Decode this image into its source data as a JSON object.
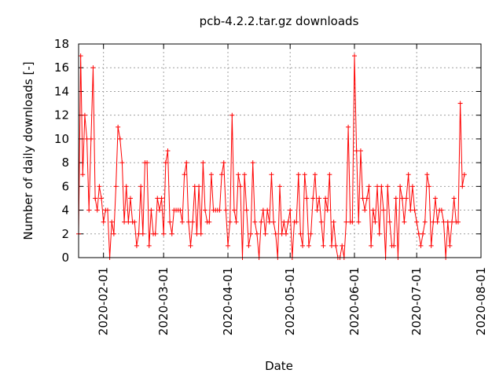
{
  "chart_data": {
    "type": "line",
    "title": "pcb-4.2.2.tar.gz downloads",
    "xlabel": "Date",
    "ylabel": "Number of daily downloads [-]",
    "x_range": [
      "2020-01-20",
      "2020-08-01"
    ],
    "ylim": [
      0,
      18
    ],
    "y_ticks": [
      0,
      2,
      4,
      6,
      8,
      10,
      12,
      14,
      16,
      18
    ],
    "x_ticks": [
      "2020-02-01",
      "2020-03-01",
      "2020-04-01",
      "2020-05-01",
      "2020-06-01",
      "2020-07-01",
      "2020-08-01"
    ],
    "grid": true,
    "line_color": "#ff0000",
    "series": [
      {
        "x_start": "2020-01-20",
        "x_step_days": 1,
        "values": [
          2,
          17,
          7,
          12,
          10,
          4,
          10,
          16,
          5,
          4,
          6,
          5,
          3,
          4,
          4,
          0,
          3,
          2,
          6,
          11,
          10,
          8,
          3,
          6,
          3,
          5,
          3,
          3,
          1,
          2,
          6,
          2,
          8,
          8,
          1,
          4,
          2,
          2,
          5,
          4,
          5,
          2,
          8,
          9,
          3,
          2,
          4,
          4,
          4,
          4,
          3,
          7,
          8,
          3,
          1,
          3,
          6,
          2,
          6,
          2,
          8,
          4,
          3,
          3,
          7,
          4,
          4,
          4,
          4,
          7,
          8,
          4,
          1,
          3,
          12,
          4,
          3,
          7,
          6,
          0,
          7,
          4,
          1,
          2,
          8,
          3,
          2,
          0,
          3,
          4,
          2,
          4,
          3,
          7,
          3,
          2,
          0,
          6,
          2,
          3,
          2,
          3,
          4,
          0,
          3,
          3,
          7,
          2,
          1,
          7,
          5,
          1,
          2,
          5,
          7,
          4,
          5,
          3,
          1,
          5,
          4,
          7,
          1,
          3,
          1,
          0,
          0,
          1,
          0,
          3,
          11,
          3,
          3,
          17,
          9,
          3,
          9,
          5,
          4,
          5,
          6,
          1,
          4,
          3,
          6,
          2,
          6,
          4,
          0,
          6,
          3,
          1,
          1,
          5,
          0,
          6,
          5,
          3,
          5,
          7,
          4,
          6,
          4,
          3,
          2,
          1,
          2,
          3,
          7,
          6,
          1,
          3,
          5,
          3,
          4,
          4,
          3,
          0,
          3,
          1,
          3,
          5,
          3,
          3,
          13,
          6,
          7
        ]
      }
    ]
  }
}
